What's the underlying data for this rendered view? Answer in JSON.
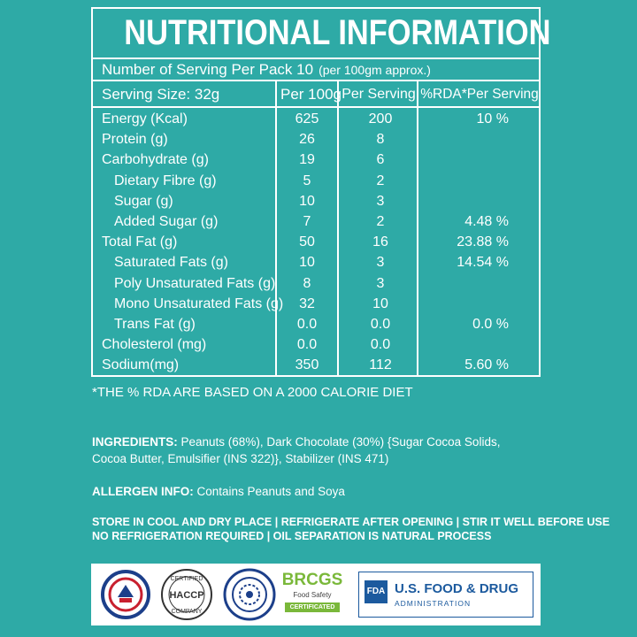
{
  "title": "NUTRITIONAL INFORMATION",
  "servings_per_pack": "Number of Serving Per Pack 10",
  "servings_note": "(per 100gm approx.)",
  "columns": {
    "serving_size": "Serving Size: 32g",
    "per_100g": "Per 100g",
    "per_serving": "Per Serving",
    "rda": "%RDA*Per Serving"
  },
  "rows": [
    {
      "name": "Energy (Kcal)",
      "per100": "625",
      "serving": "200",
      "rda": "10 %"
    },
    {
      "name": "Protein (g)",
      "per100": "26",
      "serving": "8",
      "rda": ""
    },
    {
      "name": "Carbohydrate (g)",
      "per100": "19",
      "serving": "6",
      "rda": ""
    },
    {
      "name": "Dietary Fibre (g)",
      "per100": "5",
      "serving": "2",
      "rda": ""
    },
    {
      "name": "Sugar (g)",
      "per100": "10",
      "serving": "3",
      "rda": ""
    },
    {
      "name": "Added Sugar (g)",
      "per100": "7",
      "serving": "2",
      "rda": "4.48 %"
    },
    {
      "name": "Total Fat (g)",
      "per100": "50",
      "serving": "16",
      "rda": "23.88 %"
    },
    {
      "name": "Saturated Fats (g)",
      "per100": "10",
      "serving": "3",
      "rda": "14.54 %"
    },
    {
      "name": "Poly Unsaturated Fats (g)",
      "per100": "8",
      "serving": "3",
      "rda": ""
    },
    {
      "name": "Mono Unsaturated Fats (g)",
      "per100": "32",
      "serving": "10",
      "rda": ""
    },
    {
      "name": "Trans Fat (g)",
      "per100": "0.0",
      "serving": "0.0",
      "rda": "0.0 %"
    },
    {
      "name": "Cholesterol (mg)",
      "per100": "0.0",
      "serving": "0.0",
      "rda": ""
    },
    {
      "name": "Sodium(mg)",
      "per100": "350",
      "serving": "112",
      "rda": "5.60 %"
    }
  ],
  "footnote": "*THE % RDA ARE BASED ON A 2000 CALORIE DIET",
  "ingredients": {
    "label": "INGREDIENTS:",
    "line1": " Peanuts (68%), Dark Chocolate (30%) {Sugar Cocoa Solids,",
    "line2": "Cocoa Butter, Emulsifier (INS 322)}, Stabilizer (INS 471)"
  },
  "allergen": {
    "label": "ALLERGEN INFO:",
    "text": " Contains Peanuts and Soya"
  },
  "storage": {
    "line1": "STORE IN COOL AND DRY PLACE | REFRIGERATE AFTER OPENING | STIR IT WELL BEFORE USE",
    "line2": "NO REFRIGERATION REQUIRED  |  OIL SEPARATION IS NATURAL PROCESS"
  },
  "logos": {
    "haccp_top": "CERTIFIED",
    "haccp_mid": "HACCP",
    "haccp_bottom": "COMPANY",
    "brcgs": "BRCGS",
    "brcgs_sub": "Food Safety",
    "brcgs_cert": "CERTIFICATED",
    "fda_badge": "FDA",
    "fda_line1": "U.S. FOOD & DRUG",
    "fda_line2": "ADMINISTRATION"
  },
  "colors": {
    "background": "#2eaaa6",
    "fda_blue": "#1c5a9e",
    "brcgs_green": "#7ab83a"
  }
}
